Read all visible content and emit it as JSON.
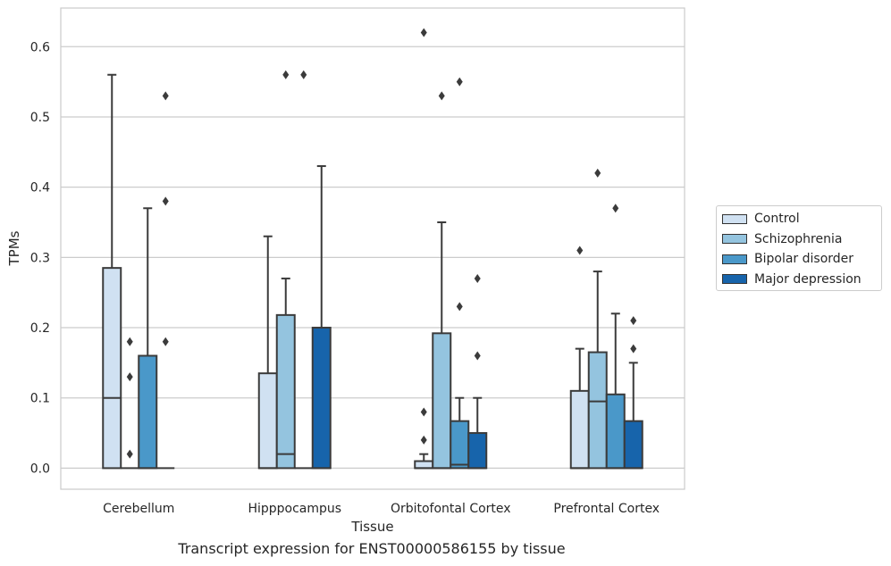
{
  "caption": "Transcript expression for ENST00000586155 by tissue",
  "chart_data": {
    "type": "box",
    "xlabel": "Tissue",
    "ylabel": "TPMs",
    "ylim": [
      -0.03,
      0.655
    ],
    "yticks": [
      0.0,
      0.1,
      0.2,
      0.3,
      0.4,
      0.5,
      0.6
    ],
    "ytick_labels": [
      "0.0",
      "0.1",
      "0.2",
      "0.3",
      "0.4",
      "0.5",
      "0.6"
    ],
    "grid": true,
    "legend_position": "right",
    "categories": [
      "Cerebellum",
      "Hipppocampus",
      "Orbitofontal Cortex",
      "Prefrontal Cortex"
    ],
    "series": [
      {
        "name": "Control",
        "color": "#d0e1f2",
        "boxes": [
          {
            "q1": 0,
            "median": 0.1,
            "q3": 0.285,
            "whisker_low": 0,
            "whisker_high": 0.56,
            "outliers": []
          },
          {
            "q1": 0,
            "median": 0,
            "q3": 0.135,
            "whisker_low": 0,
            "whisker_high": 0.33,
            "outliers": []
          },
          {
            "q1": 0,
            "median": 0,
            "q3": 0.01,
            "whisker_low": 0,
            "whisker_high": 0.02,
            "outliers": [
              0.04,
              0.08,
              0.62
            ]
          },
          {
            "q1": 0,
            "median": 0,
            "q3": 0.11,
            "whisker_low": 0,
            "whisker_high": 0.17,
            "outliers": [
              0.31
            ]
          }
        ]
      },
      {
        "name": "Schizophrenia",
        "color": "#94c4df",
        "boxes": [
          {
            "q1": 0,
            "median": 0,
            "q3": 0,
            "whisker_low": 0,
            "whisker_high": 0,
            "outliers": [
              0.02,
              0.13,
              0.18
            ]
          },
          {
            "q1": 0,
            "median": 0.02,
            "q3": 0.218,
            "whisker_low": 0,
            "whisker_high": 0.27,
            "outliers": [
              0.56
            ]
          },
          {
            "q1": 0,
            "median": 0,
            "q3": 0.192,
            "whisker_low": 0,
            "whisker_high": 0.35,
            "outliers": [
              0.53
            ]
          },
          {
            "q1": 0,
            "median": 0.095,
            "q3": 0.165,
            "whisker_low": 0,
            "whisker_high": 0.28,
            "outliers": [
              0.42
            ]
          }
        ]
      },
      {
        "name": "Bipolar disorder",
        "color": "#4a98c9",
        "boxes": [
          {
            "q1": 0,
            "median": 0,
            "q3": 0.16,
            "whisker_low": 0,
            "whisker_high": 0.37,
            "outliers": []
          },
          {
            "q1": 0,
            "median": 0,
            "q3": 0,
            "whisker_low": 0,
            "whisker_high": 0,
            "outliers": [
              0.56
            ]
          },
          {
            "q1": 0,
            "median": 0.005,
            "q3": 0.067,
            "whisker_low": 0,
            "whisker_high": 0.1,
            "outliers": [
              0.23,
              0.55
            ]
          },
          {
            "q1": 0,
            "median": 0,
            "q3": 0.105,
            "whisker_low": 0,
            "whisker_high": 0.22,
            "outliers": [
              0.37
            ]
          }
        ]
      },
      {
        "name": "Major depression",
        "color": "#1764ab",
        "boxes": [
          {
            "q1": 0,
            "median": 0,
            "q3": 0,
            "whisker_low": 0,
            "whisker_high": 0,
            "outliers": [
              0.18,
              0.38,
              0.53
            ]
          },
          {
            "q1": 0,
            "median": 0,
            "q3": 0.2,
            "whisker_low": 0,
            "whisker_high": 0.43,
            "outliers": []
          },
          {
            "q1": 0,
            "median": 0,
            "q3": 0.05,
            "whisker_low": 0,
            "whisker_high": 0.1,
            "outliers": [
              0.16,
              0.27
            ]
          },
          {
            "q1": 0,
            "median": 0,
            "q3": 0.067,
            "whisker_low": 0,
            "whisker_high": 0.15,
            "outliers": [
              0.17,
              0.21
            ]
          }
        ]
      }
    ]
  }
}
